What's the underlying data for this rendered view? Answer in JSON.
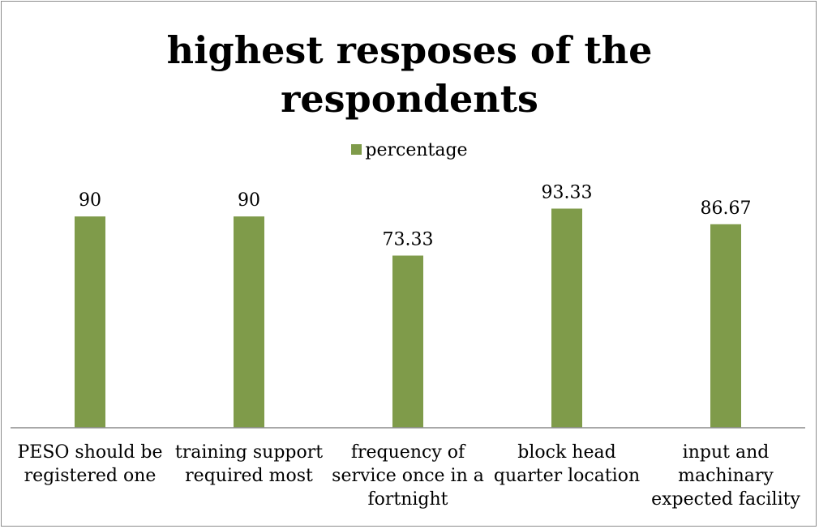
{
  "chart_data": {
    "type": "bar",
    "title": "highest resposes of the respondents",
    "title_lines": [
      "highest resposes of the",
      "respondents"
    ],
    "categories": [
      "PESO should be registered one",
      "training support required most",
      "frequency of service once in a fortnight",
      "block head quarter location",
      "input and machinary expected facility"
    ],
    "category_lines": [
      [
        "PESO should be",
        "registered one"
      ],
      [
        "training support",
        "required most"
      ],
      [
        "frequency of",
        "service once in a",
        "fortnight"
      ],
      [
        "block head",
        "quarter location"
      ],
      [
        "input and",
        "machinary",
        "expected facility"
      ]
    ],
    "series": [
      {
        "name": "percentage",
        "values": [
          90,
          90,
          73.33,
          93.33,
          86.67
        ],
        "value_labels": [
          "90",
          "90",
          "73.33",
          "93.33",
          "86.67"
        ],
        "color": "#7f9b4a"
      }
    ],
    "ylim": [
      0,
      100
    ],
    "grid": false,
    "legend_position": "top",
    "xlabel": "",
    "ylabel": ""
  }
}
